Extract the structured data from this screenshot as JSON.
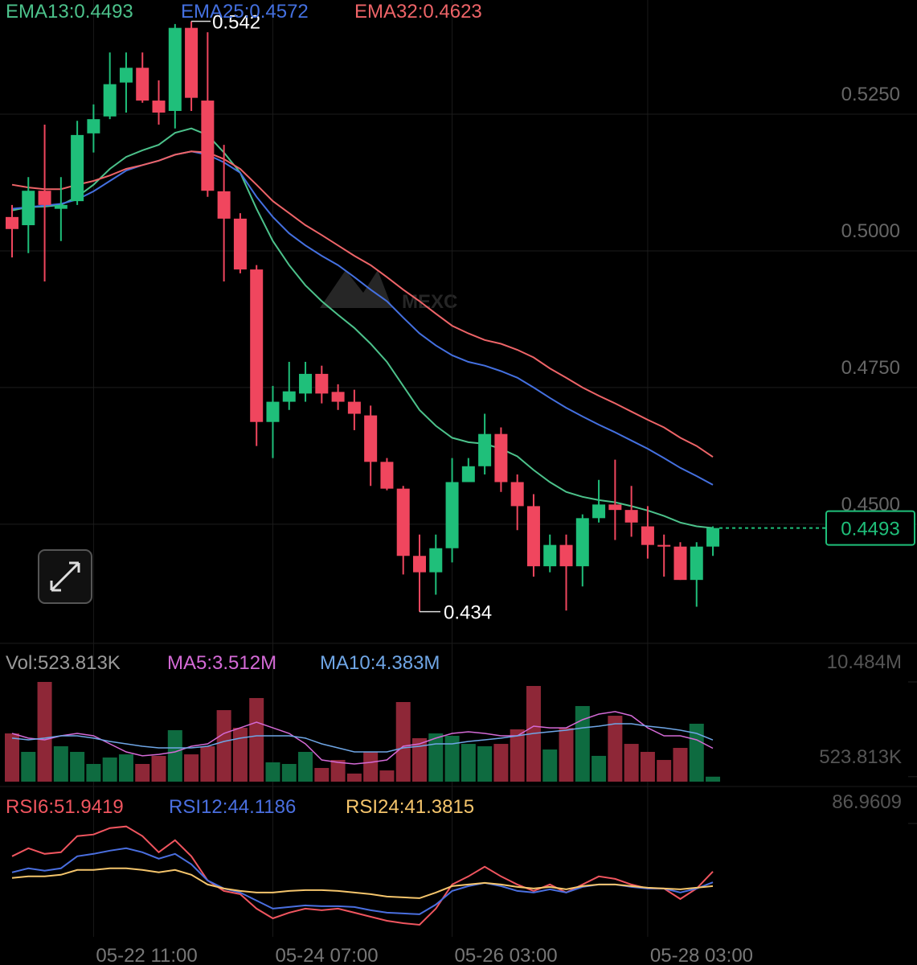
{
  "chart_data": [
    {
      "type": "candlestick",
      "watermark": "MEXC",
      "categories": [
        null,
        null,
        null,
        null,
        null,
        "05-22 11:00",
        null,
        null,
        null,
        null,
        null,
        null,
        null,
        null,
        null,
        null,
        "05-24 07:00",
        null,
        null,
        null,
        null,
        null,
        null,
        null,
        null,
        null,
        null,
        "05-26 03:00",
        null,
        null,
        null,
        null,
        null,
        null,
        null,
        null,
        null,
        null,
        null,
        "05-28 03:00",
        null,
        null,
        null,
        null
      ],
      "open": [
        0.5062,
        0.5047,
        0.511,
        0.5077,
        0.5091,
        0.5215,
        0.5246,
        0.5308,
        0.5335,
        0.5275,
        0.5256,
        0.5408,
        0.5275,
        0.5109,
        0.5059,
        0.4966,
        0.4687,
        0.4724,
        0.4739,
        0.4775,
        0.4742,
        0.4724,
        0.4699,
        0.4614,
        0.4565,
        0.4442,
        0.4412,
        0.4456,
        0.4577,
        0.4606,
        0.4665,
        0.4577,
        0.4533,
        0.4423,
        0.4462,
        0.4423,
        0.4511,
        0.4536,
        0.4526,
        0.4496,
        0.4462,
        0.4459,
        0.4398,
        0.4459
      ],
      "high": [
        0.5084,
        0.5135,
        0.5231,
        0.5135,
        0.5238,
        0.5268,
        0.5363,
        0.5363,
        0.5363,
        0.5312,
        0.5415,
        0.542,
        0.54,
        0.5194,
        0.5069,
        0.4974,
        0.4753,
        0.4797,
        0.4797,
        0.479,
        0.4756,
        0.4746,
        0.4717,
        0.4621,
        0.457,
        0.4481,
        0.4481,
        0.4621,
        0.4621,
        0.4702,
        0.4677,
        0.4591,
        0.4555,
        0.4481,
        0.4481,
        0.4518,
        0.4581,
        0.4618,
        0.457,
        0.4533,
        0.4481,
        0.4467,
        0.4467,
        0.4496
      ],
      "low": [
        0.4988,
        0.4996,
        0.4944,
        0.5018,
        0.5084,
        0.518,
        0.5241,
        0.5253,
        0.5271,
        0.5231,
        0.5224,
        0.5256,
        0.5099,
        0.4944,
        0.4959,
        0.4643,
        0.4621,
        0.4709,
        0.4724,
        0.4721,
        0.4709,
        0.4672,
        0.457,
        0.4562,
        0.4408,
        0.434,
        0.4371,
        0.443,
        0.4577,
        0.4591,
        0.4559,
        0.4489,
        0.4404,
        0.4412,
        0.4342,
        0.4386,
        0.4503,
        0.4471,
        0.4477,
        0.4437,
        0.4404,
        0.4398,
        0.4349,
        0.4442
      ],
      "close": [
        0.504,
        0.511,
        0.5084,
        0.5084,
        0.5212,
        0.5241,
        0.5305,
        0.5335,
        0.5275,
        0.5253,
        0.5408,
        0.528,
        0.511,
        0.5059,
        0.4966,
        0.4687,
        0.4724,
        0.4743,
        0.4775,
        0.4739,
        0.4724,
        0.4702,
        0.4614,
        0.4565,
        0.4442,
        0.4412,
        0.4456,
        0.4577,
        0.4606,
        0.4665,
        0.4577,
        0.4533,
        0.4423,
        0.4462,
        0.4423,
        0.4511,
        0.4536,
        0.4526,
        0.4503,
        0.4462,
        0.4459,
        0.4398,
        0.4459,
        0.4493
      ],
      "up_color": "#1fbf7a",
      "down_color": "#f0465e",
      "series": [
        {
          "name": "EMA13:0.4493",
          "color": "#4cc28b",
          "values": [
            0.5074,
            0.508,
            0.5081,
            0.5084,
            0.5099,
            0.5121,
            0.515,
            0.5172,
            0.5184,
            0.5194,
            0.5216,
            0.5224,
            0.5212,
            0.518,
            0.5143,
            0.5077,
            0.5018,
            0.4974,
            0.4937,
            0.4908,
            0.4883,
            0.4859,
            0.483,
            0.4797,
            0.4753,
            0.4709,
            0.468,
            0.4658,
            0.465,
            0.4647,
            0.4638,
            0.4624,
            0.4599,
            0.4577,
            0.4559,
            0.455,
            0.4544,
            0.454,
            0.4533,
            0.4525,
            0.4515,
            0.4503,
            0.4496,
            0.4493
          ]
        },
        {
          "name": "EMA25:0.4572",
          "color": "#4470e0",
          "values": [
            0.5077,
            0.508,
            0.5083,
            0.5086,
            0.5094,
            0.5109,
            0.5128,
            0.5147,
            0.5157,
            0.5165,
            0.5176,
            0.5182,
            0.5176,
            0.5162,
            0.5143,
            0.5099,
            0.5062,
            0.5032,
            0.501,
            0.4991,
            0.4974,
            0.4952,
            0.4929,
            0.4908,
            0.4878,
            0.4849,
            0.4827,
            0.4809,
            0.4797,
            0.479,
            0.478,
            0.4768,
            0.475,
            0.4731,
            0.4713,
            0.4697,
            0.4682,
            0.4668,
            0.4653,
            0.4638,
            0.4621,
            0.4603,
            0.4588,
            0.4572
          ]
        },
        {
          "name": "EMA32:0.4623",
          "color": "#ee6468",
          "values": [
            0.5121,
            0.5116,
            0.5113,
            0.5113,
            0.5121,
            0.5128,
            0.5138,
            0.515,
            0.5157,
            0.5165,
            0.5176,
            0.5182,
            0.518,
            0.5168,
            0.515,
            0.5121,
            0.5091,
            0.5069,
            0.5047,
            0.5029,
            0.501,
            0.4991,
            0.4974,
            0.4952,
            0.4929,
            0.4908,
            0.4885,
            0.4863,
            0.4849,
            0.4837,
            0.483,
            0.4819,
            0.4805,
            0.4785,
            0.4768,
            0.475,
            0.4735,
            0.4721,
            0.4706,
            0.4691,
            0.4677,
            0.4658,
            0.4643,
            0.4623
          ]
        }
      ],
      "max_label": "0.542",
      "min_label": "0.434",
      "last_price_label": "0.4493",
      "ylim": [
        0.4282,
        0.5459
      ],
      "yticks": [
        {
          "value": 0.45,
          "label": "0.4500"
        },
        {
          "value": 0.475,
          "label": "0.4750"
        },
        {
          "value": 0.5,
          "label": "0.5000"
        },
        {
          "value": 0.525,
          "label": "0.5250"
        }
      ],
      "grid": true
    },
    {
      "type": "bar",
      "title": "Vol:523.813K",
      "values": [
        5.07,
        3.13,
        10.484,
        3.72,
        3.13,
        1.86,
        2.54,
        2.87,
        1.86,
        2.71,
        5.41,
        2.87,
        3.72,
        7.52,
        5.66,
        8.79,
        2.03,
        1.86,
        3.13,
        1.44,
        2.28,
        0.85,
        3.13,
        1.18,
        8.37,
        4.57,
        5.07,
        4.82,
        3.97,
        3.72,
        3.97,
        5.5,
        10.06,
        3.38,
        5.66,
        7.95,
        2.71,
        6.93,
        3.97,
        3.13,
        2.28,
        3.55,
        6.09,
        0.523813
      ],
      "up_color": "#0e6b40",
      "down_color": "#8e2737",
      "series": [
        {
          "name": "MA5:3.512M",
          "color": "#d46ad6",
          "values": [
            5.07,
            4.57,
            4.4,
            4.82,
            5.07,
            4.82,
            3.97,
            3.13,
            2.71,
            2.87,
            3.13,
            3.72,
            3.97,
            5.07,
            5.66,
            6.26,
            5.66,
            5.07,
            3.97,
            2.28,
            2.03,
            1.86,
            2.03,
            2.28,
            3.72,
            3.97,
            4.57,
            5.07,
            5.24,
            5.07,
            4.82,
            4.82,
            5.83,
            5.66,
            5.66,
            6.51,
            7.1,
            7.36,
            6.93,
            5.66,
            4.82,
            4.82,
            4.4,
            3.512
          ]
        },
        {
          "name": "MA10:4.383M",
          "color": "#6fa6e6",
          "values": [
            4.57,
            4.4,
            4.57,
            4.82,
            4.82,
            4.57,
            4.23,
            3.97,
            3.72,
            3.55,
            3.55,
            3.55,
            3.72,
            4.23,
            4.57,
            4.82,
            4.82,
            4.82,
            4.57,
            3.97,
            3.55,
            3.13,
            3.13,
            3.13,
            3.55,
            3.72,
            3.97,
            3.97,
            4.23,
            4.4,
            4.57,
            4.82,
            5.07,
            5.24,
            5.41,
            5.66,
            5.83,
            6.09,
            6.09,
            5.83,
            5.66,
            5.41,
            5.07,
            4.383
          ]
        }
      ],
      "ylim": [
        0,
        10.484
      ],
      "yticks": [
        {
          "value": 0.523813,
          "label": "523.813K"
        },
        {
          "value": 10.484,
          "label": "10.484M"
        }
      ]
    },
    {
      "type": "line",
      "series": [
        {
          "name": "RSI6:51.9419",
          "color": "#f0555f",
          "values": [
            63.08,
            68.95,
            64.84,
            66.02,
            77.75,
            78.92,
            83.61,
            84.78,
            77.75,
            66.02,
            74.81,
            63.08,
            45.49,
            37.86,
            35.52,
            24.96,
            17.92,
            22.03,
            24.96,
            23.79,
            24.96,
            22.03,
            19.09,
            16.16,
            14.4,
            13.23,
            24.96,
            42.56,
            48.42,
            55.46,
            48.42,
            42.56,
            37.86,
            42.56,
            36.69,
            42.56,
            48.42,
            46.66,
            42.56,
            39.62,
            39.62,
            32.0,
            39.62,
            51.9419
          ]
        },
        {
          "name": "RSI12:44.1186",
          "color": "#4a6fe0",
          "values": [
            51.35,
            54.29,
            52.53,
            54.29,
            63.08,
            64.84,
            67.19,
            68.95,
            66.02,
            61.32,
            64.84,
            57.22,
            45.49,
            39.62,
            36.69,
            30.83,
            24.96,
            26.13,
            27.31,
            26.72,
            26.72,
            26.13,
            23.79,
            22.03,
            21.44,
            20.85,
            27.89,
            37.86,
            41.38,
            43.73,
            41.38,
            37.86,
            36.69,
            39.04,
            36.69,
            40.8,
            42.56,
            42.56,
            40.8,
            39.62,
            39.62,
            36.69,
            39.62,
            44.1186
          ]
        },
        {
          "name": "RSI24:41.3815",
          "color": "#f5c56c",
          "values": [
            47.25,
            48.42,
            48.42,
            49.59,
            53.11,
            53.11,
            54.29,
            54.29,
            53.11,
            51.35,
            53.11,
            49.59,
            42.56,
            39.62,
            37.86,
            36.69,
            36.69,
            37.86,
            38.45,
            38.45,
            37.86,
            36.69,
            35.52,
            33.76,
            33.17,
            32.58,
            36.69,
            41.38,
            42.56,
            43.73,
            42.56,
            40.8,
            39.62,
            40.8,
            39.04,
            41.38,
            42.56,
            42.56,
            41.38,
            40.21,
            39.62,
            39.04,
            40.21,
            41.3815
          ]
        }
      ],
      "ylim": [
        4.43,
        86.9609
      ],
      "yticks": [
        86.9609
      ]
    }
  ]
}
